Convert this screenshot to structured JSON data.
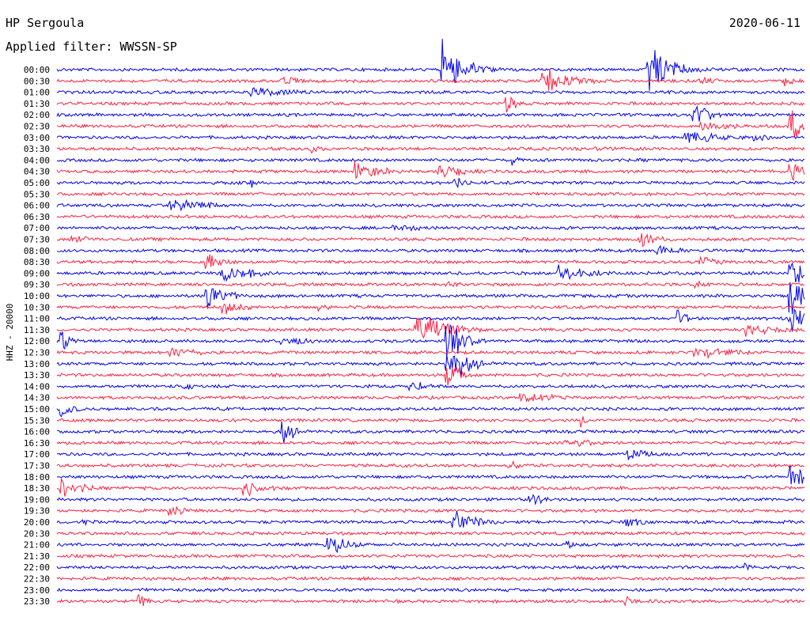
{
  "header": {
    "station": "HP Sergoula",
    "filter_label": "Applied filter: WWSSN-SP",
    "date": "2020-06-11"
  },
  "colors": {
    "even_trace": "#0000ee",
    "odd_trace": "#ff2040",
    "text": "#000000"
  },
  "chart_data": {
    "type": "line",
    "title": "HP Sergoula",
    "subtitle": "Applied filter: WWSSN-SP",
    "date": "2020-06-11",
    "ylabel": "HHZ - 20000",
    "traces_per_hour": 2,
    "trace_minutes": 30,
    "row_labels": [
      "00:00",
      "00:30",
      "01:00",
      "01:30",
      "02:00",
      "02:30",
      "03:00",
      "03:30",
      "04:00",
      "04:30",
      "05:00",
      "05:30",
      "06:00",
      "06:30",
      "07:00",
      "07:30",
      "08:00",
      "08:30",
      "09:00",
      "09:30",
      "10:00",
      "10:30",
      "11:00",
      "11:30",
      "12:00",
      "12:30",
      "13:00",
      "13:30",
      "14:00",
      "14:30",
      "15:00",
      "15:30",
      "16:00",
      "16:30",
      "17:00",
      "17:30",
      "18:00",
      "18:30",
      "19:00",
      "19:30",
      "20:00",
      "20:30",
      "21:00",
      "21:30",
      "22:00",
      "22:30",
      "23:00",
      "23:30"
    ],
    "events": [
      {
        "row": 0,
        "t": 0.515,
        "amp": 42,
        "dur": 0.03
      },
      {
        "row": 0,
        "t": 0.79,
        "amp": 40,
        "dur": 0.03
      },
      {
        "row": 1,
        "t": 0.65,
        "amp": 20,
        "dur": 0.04
      },
      {
        "row": 1,
        "t": 0.3,
        "amp": 8,
        "dur": 0.03
      },
      {
        "row": 1,
        "t": 0.86,
        "amp": 7,
        "dur": 0.03
      },
      {
        "row": 1,
        "t": 0.97,
        "amp": 9,
        "dur": 0.02
      },
      {
        "row": 2,
        "t": 0.26,
        "amp": 10,
        "dur": 0.06
      },
      {
        "row": 3,
        "t": 0.6,
        "amp": 22,
        "dur": 0.01
      },
      {
        "row": 4,
        "t": 0.85,
        "amp": 24,
        "dur": 0.02
      },
      {
        "row": 5,
        "t": 0.86,
        "amp": 8,
        "dur": 0.06
      },
      {
        "row": 5,
        "t": 0.98,
        "amp": 22,
        "dur": 0.03
      },
      {
        "row": 6,
        "t": 0.84,
        "amp": 10,
        "dur": 0.06
      },
      {
        "row": 6,
        "t": 0.93,
        "amp": 9,
        "dur": 0.02
      },
      {
        "row": 7,
        "t": 0.34,
        "amp": 14,
        "dur": 0.01
      },
      {
        "row": 7,
        "t": 0.72,
        "amp": 5,
        "dur": 0.05
      },
      {
        "row": 8,
        "t": 0.61,
        "amp": 8,
        "dur": 0.01
      },
      {
        "row": 9,
        "t": 0.4,
        "amp": 14,
        "dur": 0.04
      },
      {
        "row": 9,
        "t": 0.51,
        "amp": 12,
        "dur": 0.04
      },
      {
        "row": 9,
        "t": 0.98,
        "amp": 20,
        "dur": 0.02
      },
      {
        "row": 10,
        "t": 0.26,
        "amp": 8,
        "dur": 0.01
      },
      {
        "row": 10,
        "t": 0.53,
        "amp": 10,
        "dur": 0.02
      },
      {
        "row": 12,
        "t": 0.15,
        "amp": 10,
        "dur": 0.06
      },
      {
        "row": 12,
        "t": 0.2,
        "amp": 6,
        "dur": 0.01
      },
      {
        "row": 14,
        "t": 0.45,
        "amp": 6,
        "dur": 0.05
      },
      {
        "row": 15,
        "t": 0.02,
        "amp": 6,
        "dur": 0.04
      },
      {
        "row": 15,
        "t": 0.78,
        "amp": 16,
        "dur": 0.02
      },
      {
        "row": 16,
        "t": 0.8,
        "amp": 12,
        "dur": 0.03
      },
      {
        "row": 17,
        "t": 0.2,
        "amp": 18,
        "dur": 0.02
      },
      {
        "row": 17,
        "t": 0.86,
        "amp": 9,
        "dur": 0.04
      },
      {
        "row": 18,
        "t": 0.22,
        "amp": 16,
        "dur": 0.04
      },
      {
        "row": 18,
        "t": 0.67,
        "amp": 12,
        "dur": 0.05
      },
      {
        "row": 18,
        "t": 0.98,
        "amp": 30,
        "dur": 0.02
      },
      {
        "row": 19,
        "t": 0.52,
        "amp": 8,
        "dur": 0.02
      },
      {
        "row": 19,
        "t": 0.85,
        "amp": 8,
        "dur": 0.02
      },
      {
        "row": 20,
        "t": 0.2,
        "amp": 18,
        "dur": 0.03
      },
      {
        "row": 20,
        "t": 0.98,
        "amp": 30,
        "dur": 0.02
      },
      {
        "row": 21,
        "t": 0.22,
        "amp": 12,
        "dur": 0.03
      },
      {
        "row": 21,
        "t": 0.35,
        "amp": 6,
        "dur": 0.03
      },
      {
        "row": 22,
        "t": 0.83,
        "amp": 12,
        "dur": 0.02
      },
      {
        "row": 22,
        "t": 0.98,
        "amp": 28,
        "dur": 0.02
      },
      {
        "row": 23,
        "t": 0.48,
        "amp": 28,
        "dur": 0.04
      },
      {
        "row": 23,
        "t": 0.92,
        "amp": 10,
        "dur": 0.05
      },
      {
        "row": 24,
        "t": 0.005,
        "amp": 18,
        "dur": 0.02
      },
      {
        "row": 24,
        "t": 0.3,
        "amp": 8,
        "dur": 0.05
      },
      {
        "row": 24,
        "t": 0.52,
        "amp": 40,
        "dur": 0.02
      },
      {
        "row": 25,
        "t": 0.15,
        "amp": 10,
        "dur": 0.04
      },
      {
        "row": 25,
        "t": 0.85,
        "amp": 12,
        "dur": 0.05
      },
      {
        "row": 26,
        "t": 0.52,
        "amp": 30,
        "dur": 0.03
      },
      {
        "row": 27,
        "t": 0.52,
        "amp": 20,
        "dur": 0.02
      },
      {
        "row": 28,
        "t": 0.17,
        "amp": 10,
        "dur": 0.01
      },
      {
        "row": 28,
        "t": 0.47,
        "amp": 12,
        "dur": 0.02
      },
      {
        "row": 29,
        "t": 0.62,
        "amp": 10,
        "dur": 0.05
      },
      {
        "row": 30,
        "t": 0.005,
        "amp": 12,
        "dur": 0.02
      },
      {
        "row": 31,
        "t": 0.7,
        "amp": 10,
        "dur": 0.01
      },
      {
        "row": 32,
        "t": 0.3,
        "amp": 20,
        "dur": 0.02
      },
      {
        "row": 33,
        "t": 0.68,
        "amp": 10,
        "dur": 0.04
      },
      {
        "row": 34,
        "t": 0.76,
        "amp": 12,
        "dur": 0.03
      },
      {
        "row": 35,
        "t": 0.6,
        "amp": 8,
        "dur": 0.03
      },
      {
        "row": 36,
        "t": 0.98,
        "amp": 20,
        "dur": 0.03
      },
      {
        "row": 37,
        "t": 0.005,
        "amp": 16,
        "dur": 0.03
      },
      {
        "row": 37,
        "t": 0.25,
        "amp": 14,
        "dur": 0.03
      },
      {
        "row": 38,
        "t": 0.63,
        "amp": 8,
        "dur": 0.04
      },
      {
        "row": 39,
        "t": 0.15,
        "amp": 8,
        "dur": 0.03
      },
      {
        "row": 40,
        "t": 0.03,
        "amp": 6,
        "dur": 0.03
      },
      {
        "row": 40,
        "t": 0.53,
        "amp": 18,
        "dur": 0.03
      },
      {
        "row": 40,
        "t": 0.76,
        "amp": 8,
        "dur": 0.03
      },
      {
        "row": 42,
        "t": 0.36,
        "amp": 18,
        "dur": 0.03
      },
      {
        "row": 42,
        "t": 0.68,
        "amp": 6,
        "dur": 0.03
      },
      {
        "row": 44,
        "t": 0.92,
        "amp": 6,
        "dur": 0.02
      },
      {
        "row": 47,
        "t": 0.11,
        "amp": 14,
        "dur": 0.01
      },
      {
        "row": 47,
        "t": 0.76,
        "amp": 10,
        "dur": 0.01
      }
    ]
  }
}
